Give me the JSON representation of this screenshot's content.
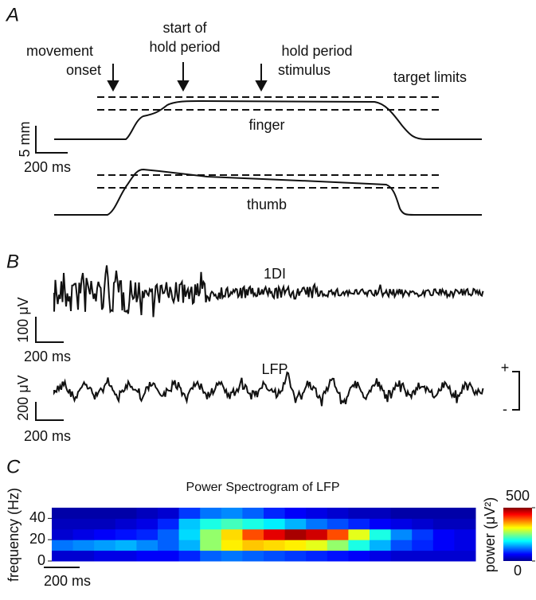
{
  "panel_a": {
    "label": "A",
    "movement_onset": [
      "movement",
      "onset"
    ],
    "start_hold": [
      "start of",
      "hold period"
    ],
    "hold_stimulus": [
      "hold period",
      "stimulus"
    ],
    "target_limits": "target limits",
    "finger": "finger",
    "thumb": "thumb",
    "scale_y": "5 mm",
    "scale_x": "200 ms"
  },
  "panel_b": {
    "label": "B",
    "emg": "1DI",
    "emg_scale_y": "100 μV",
    "emg_scale_x": "200 ms",
    "lfp": "LFP",
    "lfp_scale_y": "200 μV",
    "lfp_scale_x": "200 ms",
    "plus": "+",
    "minus": "-"
  },
  "chart_data": {
    "type": "heatmap",
    "label": "C",
    "title": "Power Spectrogram of LFP",
    "y_label": "frequency (Hz)",
    "ylim": [
      0,
      50
    ],
    "yticks": [
      0,
      20,
      40
    ],
    "freq_bins": [
      0,
      10,
      20,
      30,
      40,
      50
    ],
    "z": [
      [
        40,
        40,
        50,
        50,
        60,
        60,
        80,
        110,
        120,
        110,
        100,
        90,
        80,
        70,
        60,
        50,
        40,
        40,
        40,
        40
      ],
      [
        120,
        130,
        140,
        150,
        130,
        110,
        150,
        260,
        320,
        340,
        330,
        320,
        300,
        260,
        200,
        150,
        100,
        80,
        60,
        50
      ],
      [
        40,
        50,
        60,
        70,
        80,
        110,
        170,
        260,
        330,
        400,
        450,
        480,
        460,
        400,
        300,
        200,
        130,
        90,
        60,
        50
      ],
      [
        30,
        30,
        30,
        40,
        50,
        80,
        160,
        200,
        220,
        200,
        180,
        150,
        120,
        100,
        80,
        60,
        50,
        40,
        30,
        30
      ],
      [
        20,
        20,
        20,
        20,
        30,
        40,
        90,
        120,
        130,
        110,
        80,
        60,
        50,
        40,
        30,
        30,
        20,
        20,
        20,
        20
      ]
    ],
    "scale_x": "200 ms",
    "colorbar": {
      "label": "power (μV²)",
      "clim": [
        0,
        500
      ],
      "ticks": [
        0,
        500
      ]
    }
  }
}
